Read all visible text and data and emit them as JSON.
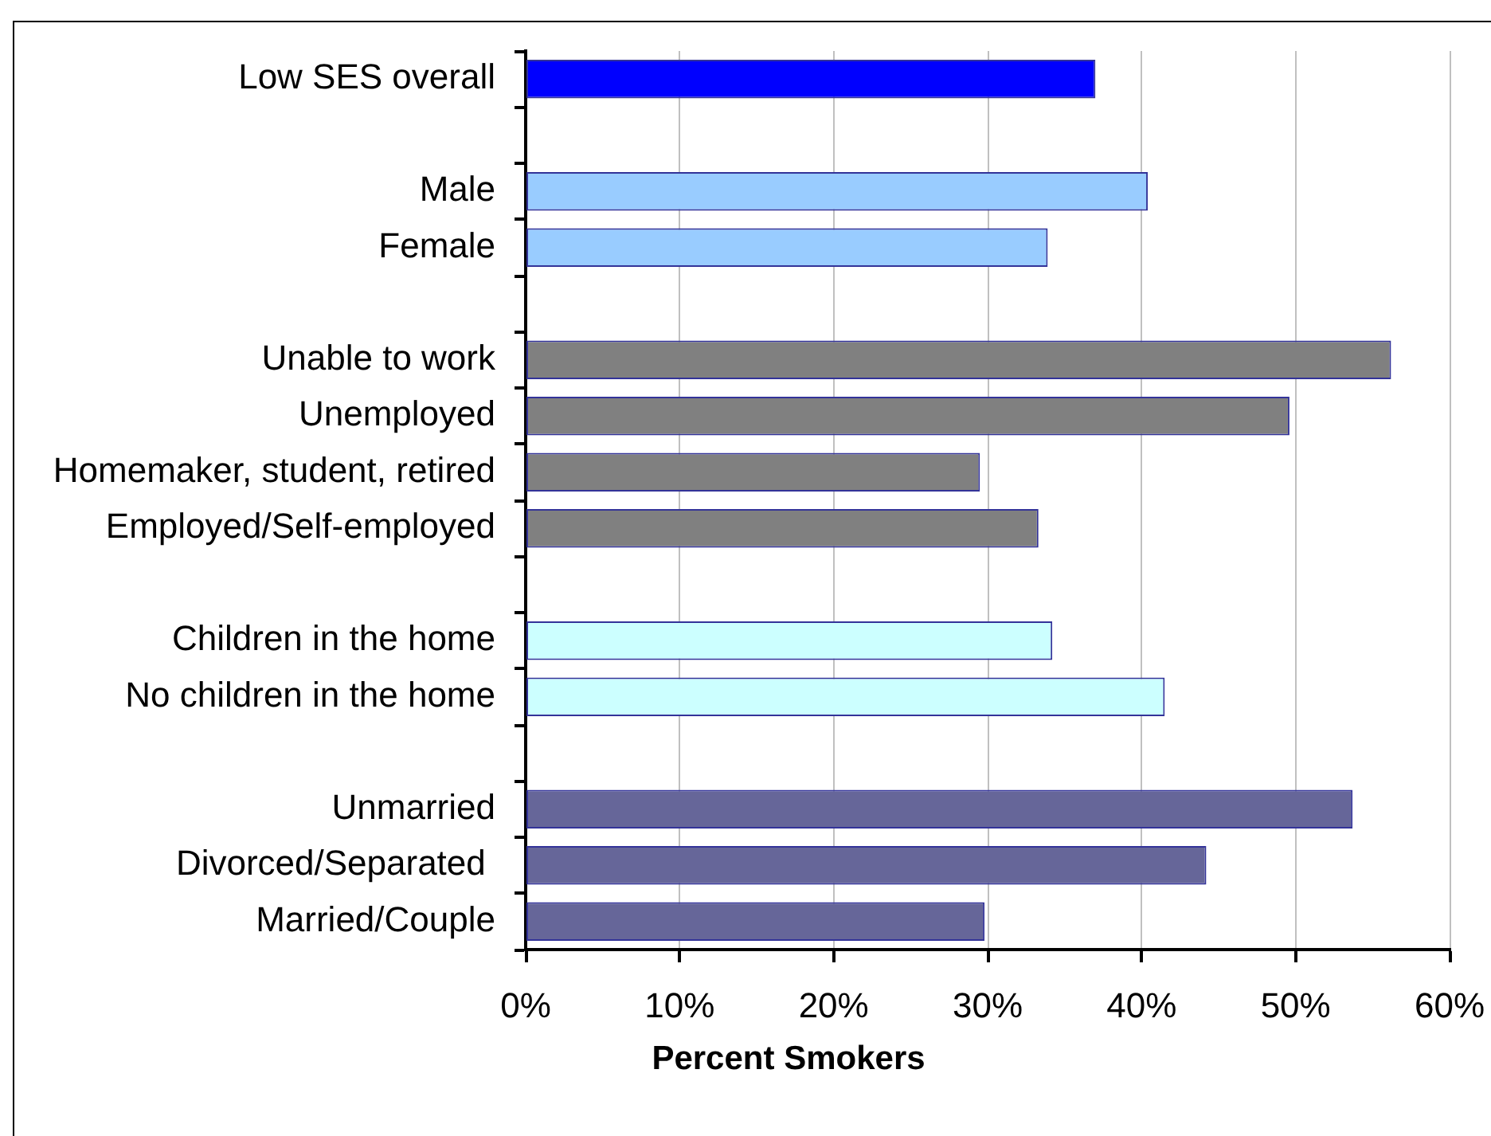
{
  "chart_data": {
    "type": "bar",
    "orientation": "horizontal",
    "categories": [
      "Low SES overall",
      null,
      "Male",
      "Female",
      null,
      "Unable to work",
      "Unemployed",
      "Homemaker, student, retired",
      "Employed/Self-employed",
      null,
      "Children in the home",
      "No children in the home",
      null,
      "Unmarried",
      "Divorced/Separated ",
      "Married/Couple"
    ],
    "values": [
      37,
      null,
      40.4,
      33.9,
      null,
      56.2,
      49.6,
      29.5,
      33.3,
      null,
      34.2,
      41.5,
      null,
      53.7,
      44.2,
      29.8
    ],
    "colors": [
      "#0000ff",
      null,
      "#99ccff",
      "#99ccff",
      null,
      "#808080",
      "#808080",
      "#808080",
      "#808080",
      null,
      "#ccffff",
      "#ccffff",
      null,
      "#666699",
      "#666699",
      "#666699"
    ],
    "xlim": [
      0,
      60
    ],
    "xticks": [
      {
        "value": 0,
        "label": "0%"
      },
      {
        "value": 10,
        "label": "10%"
      },
      {
        "value": 20,
        "label": "20%"
      },
      {
        "value": 30,
        "label": "30%"
      },
      {
        "value": 40,
        "label": "40%"
      },
      {
        "value": 50,
        "label": "50%"
      },
      {
        "value": 60,
        "label": "60%"
      }
    ],
    "xlabel": "Percent Smokers",
    "grid": "x",
    "legend": false
  }
}
